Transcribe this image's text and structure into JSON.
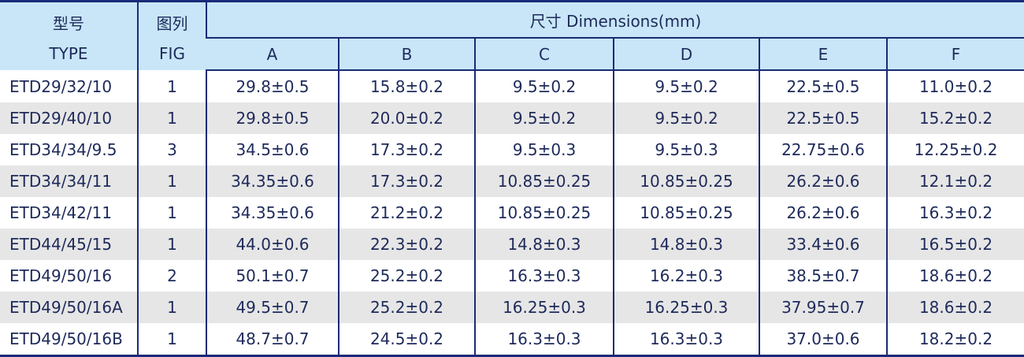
{
  "header": {
    "type_cn": "型号",
    "type_en": "TYPE",
    "fig_cn": "图列",
    "fig_en": "FIG",
    "dimensions": "尺寸 Dimensions(mm)",
    "columns": [
      "A",
      "B",
      "C",
      "D",
      "E",
      "F"
    ]
  },
  "rows": [
    {
      "type": "ETD29/32/10",
      "fig": "1",
      "values": [
        "29.8±0.5",
        "15.8±0.2",
        "9.5±0.2",
        "9.5±0.2",
        "22.5±0.5",
        "11.0±0.2"
      ]
    },
    {
      "type": "ETD29/40/10",
      "fig": "1",
      "values": [
        "29.8±0.5",
        "20.0±0.2",
        "9.5±0.2",
        "9.5±0.2",
        "22.5±0.5",
        "15.2±0.2"
      ]
    },
    {
      "type": "ETD34/34/9.5",
      "fig": "3",
      "values": [
        "34.5±0.6",
        "17.3±0.2",
        "9.5±0.3",
        "9.5±0.3",
        "22.75±0.6",
        "12.25±0.2"
      ]
    },
    {
      "type": "ETD34/34/11",
      "fig": "1",
      "values": [
        "34.35±0.6",
        "17.3±0.2",
        "10.85±0.25",
        "10.85±0.25",
        "26.2±0.6",
        "12.1±0.2"
      ]
    },
    {
      "type": "ETD34/42/11",
      "fig": "1",
      "values": [
        "34.35±0.6",
        "21.2±0.2",
        "10.85±0.25",
        "10.85±0.25",
        "26.2±0.6",
        "16.3±0.2"
      ]
    },
    {
      "type": "ETD44/45/15",
      "fig": "1",
      "values": [
        "44.0±0.6",
        "22.3±0.2",
        "14.8±0.3",
        "14.8±0.3",
        "33.4±0.6",
        "16.5±0.2"
      ]
    },
    {
      "type": "ETD49/50/16",
      "fig": "2",
      "values": [
        "50.1±0.7",
        "25.2±0.2",
        "16.3±0.3",
        "16.2±0.3",
        "38.5±0.7",
        "18.6±0.2"
      ]
    },
    {
      "type": "ETD49/50/16A",
      "fig": "1",
      "values": [
        "49.5±0.7",
        "25.2±0.2",
        "16.25±0.3",
        "16.25±0.3",
        "37.95±0.7",
        "18.6±0.2"
      ]
    },
    {
      "type": "ETD49/50/16B",
      "fig": "1",
      "values": [
        "48.7±0.7",
        "24.5±0.2",
        "16.3±0.3",
        "16.3±0.3",
        "37.0±0.6",
        "18.2±0.2"
      ]
    }
  ],
  "colors": {
    "border": "#1a2a78",
    "header_bg": "#c8e6f8",
    "stripe": "#e6e6e6",
    "text": "#1e2a5a"
  }
}
